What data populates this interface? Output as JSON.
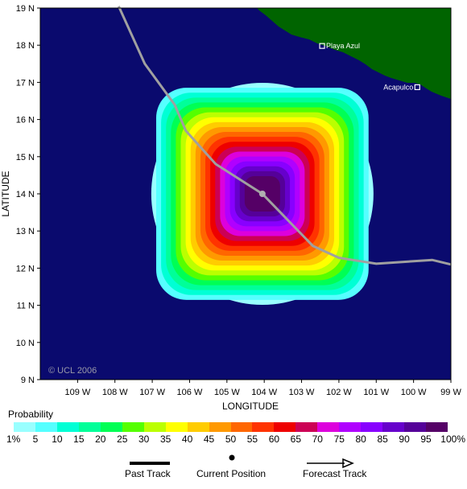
{
  "map": {
    "y_axis_title": "LATITUDE",
    "x_axis_title": "LONGITUDE",
    "lat_ticks": [
      "19 N",
      "18 N",
      "17 N",
      "16 N",
      "15 N",
      "14 N",
      "13 N",
      "12 N",
      "11 N",
      "10 N",
      "9 N"
    ],
    "lon_ticks": [
      "109 W",
      "108 W",
      "107 W",
      "106 W",
      "105 W",
      "104 W",
      "103 W",
      "102 W",
      "101 W",
      "100 W",
      "99 W"
    ],
    "copyright": "© UCL 2006",
    "bounds": {
      "lon_west": -110,
      "lon_east": -99,
      "lat_south": 9,
      "lat_north": 19
    },
    "cities": [
      {
        "name": "Playa Azul",
        "lon": -102.45,
        "lat": 17.98
      },
      {
        "name": "Acapulco",
        "lon": -99.9,
        "lat": 16.87
      }
    ],
    "storm_center": {
      "lon": -104.05,
      "lat": 14.0
    },
    "past_track": [
      {
        "lon": -107.9,
        "lat": 19.05
      },
      {
        "lon": -107.2,
        "lat": 17.5
      },
      {
        "lon": -106.4,
        "lat": 16.4
      },
      {
        "lon": -106.1,
        "lat": 15.7
      },
      {
        "lon": -105.3,
        "lat": 14.8
      },
      {
        "lon": -104.05,
        "lat": 14.0
      }
    ],
    "forecast_track": [
      {
        "lon": -104.05,
        "lat": 14.0
      },
      {
        "lon": -102.7,
        "lat": 12.6
      },
      {
        "lon": -102.0,
        "lat": 12.28
      },
      {
        "lon": -101.0,
        "lat": 12.12
      },
      {
        "lon": -99.5,
        "lat": 12.22
      },
      {
        "lon": -99.0,
        "lat": 12.1
      }
    ],
    "colors": {
      "ocean": "#0a0a6e",
      "land": "#006400",
      "track": "#a0a0a0"
    }
  },
  "legend": {
    "probability_title": "Probability",
    "probability_labels": [
      "1%",
      "5",
      "10",
      "15",
      "20",
      "25",
      "30",
      "35",
      "40",
      "45",
      "50",
      "55",
      "60",
      "65",
      "70",
      "75",
      "80",
      "85",
      "90",
      "95",
      "100%"
    ],
    "probability_colors": [
      "#99ffff",
      "#55ffff",
      "#00ffd5",
      "#00ff99",
      "#00ff55",
      "#55ff00",
      "#bbff00",
      "#ffff00",
      "#ffcc00",
      "#ff9900",
      "#ff6600",
      "#ff3300",
      "#ee0000",
      "#cc0055",
      "#dd00dd",
      "#b000ff",
      "#8800ff",
      "#6600cc",
      "#550099",
      "#550066"
    ],
    "past_track_label": "Past Track",
    "current_position_label": "Current Position",
    "forecast_track_label": "Forecast Track"
  }
}
